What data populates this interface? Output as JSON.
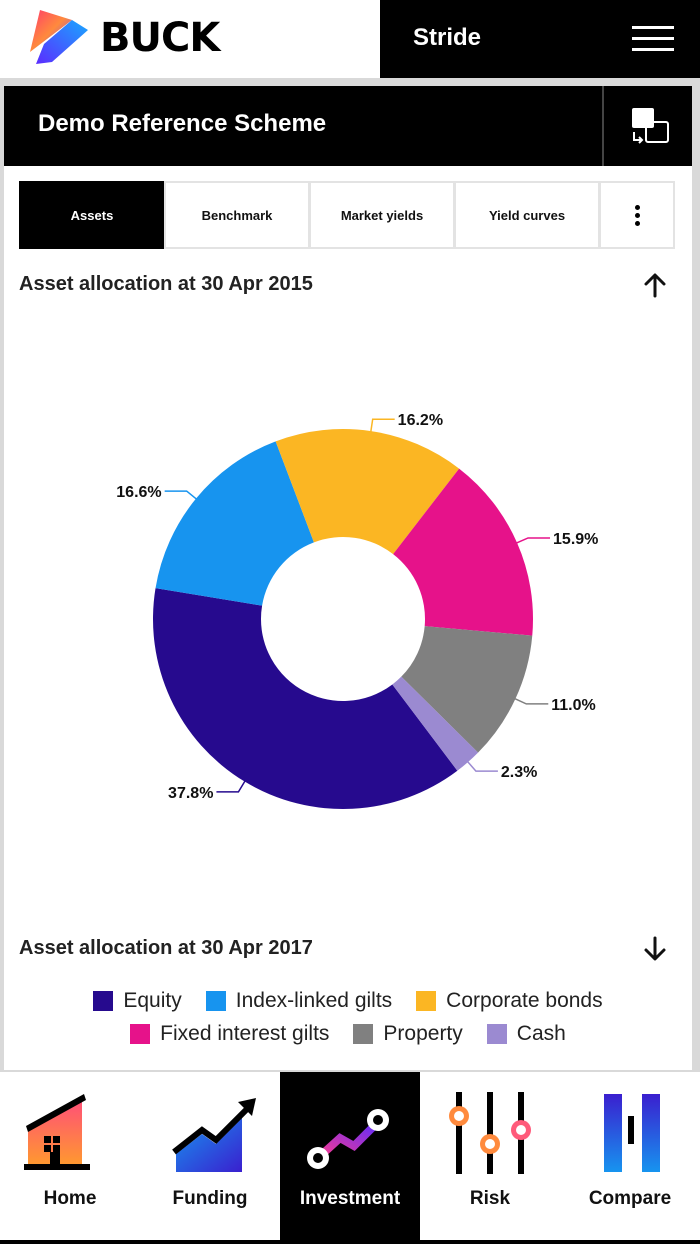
{
  "header": {
    "logo_text": "BUCK",
    "app_name": "Stride",
    "menu_icon": "hamburger-icon"
  },
  "scheme": {
    "title": "Demo Reference Scheme",
    "switch_icon": "switch-scheme-icon"
  },
  "tabs": [
    {
      "label": "Assets",
      "active": true
    },
    {
      "label": "Benchmark",
      "active": false
    },
    {
      "label": "Market yields",
      "active": false
    },
    {
      "label": "Yield curves",
      "active": false
    }
  ],
  "more_icon": "more-vertical-icon",
  "sections": {
    "first_title": "Asset allocation at 30 Apr 2015",
    "first_icon": "arrow-up-icon",
    "second_title": "Asset allocation at 30 Apr 2017",
    "second_icon": "arrow-down-icon"
  },
  "chart_data": {
    "type": "pie",
    "title": "Asset allocation at 30 Apr 2015",
    "donut": true,
    "categories": [
      "Equity",
      "Index-linked gilts",
      "Corporate bonds",
      "Fixed interest gilts",
      "Property",
      "Cash"
    ],
    "values": [
      37.8,
      16.6,
      16.2,
      15.9,
      11.0,
      2.3
    ],
    "labels": [
      "37.8%",
      "16.6%",
      "16.2%",
      "15.9%",
      "11.0%",
      "2.3%"
    ],
    "colors": [
      "#260a8e",
      "#1794ef",
      "#fbb623",
      "#e6128a",
      "#808080",
      "#9b8ad1"
    ],
    "legend_position": "bottom"
  },
  "legend": {
    "row1": [
      {
        "label": "Equity",
        "color": "#260a8e"
      },
      {
        "label": "Index-linked gilts",
        "color": "#1794ef"
      },
      {
        "label": "Corporate bonds",
        "color": "#fbb623"
      }
    ],
    "row2": [
      {
        "label": "Fixed interest gilts",
        "color": "#e6128a"
      },
      {
        "label": "Property",
        "color": "#808080"
      },
      {
        "label": "Cash",
        "color": "#9b8ad1"
      }
    ]
  },
  "nav": [
    {
      "label": "Home",
      "icon": "home-icon",
      "active": false
    },
    {
      "label": "Funding",
      "icon": "funding-icon",
      "active": false
    },
    {
      "label": "Investment",
      "icon": "investment-icon",
      "active": true
    },
    {
      "label": "Risk",
      "icon": "risk-icon",
      "active": false
    },
    {
      "label": "Compare",
      "icon": "compare-icon",
      "active": false
    }
  ]
}
